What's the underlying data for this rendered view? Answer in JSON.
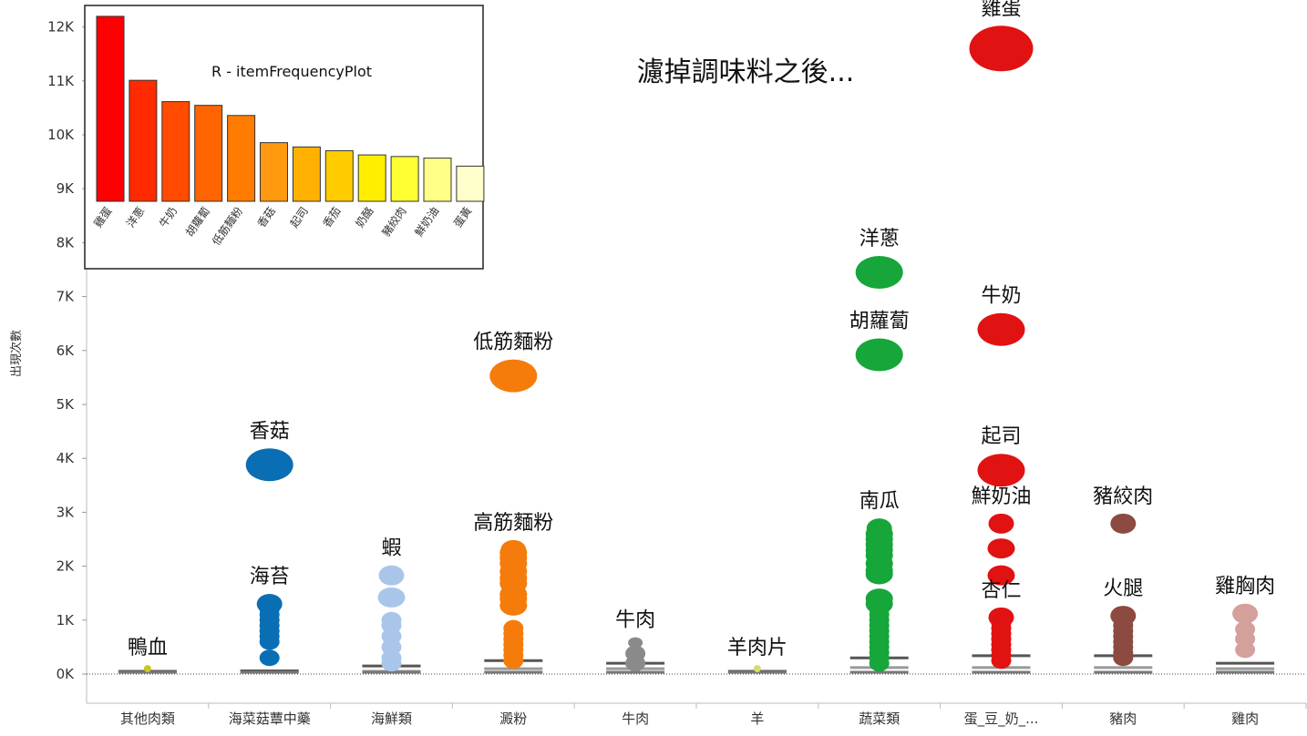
{
  "headline": "濾掉調味料之後...",
  "chart_data": [
    {
      "type": "scatter",
      "title": "",
      "xlabel": "",
      "ylabel": "出現次數",
      "ylim": [
        0,
        12300
      ],
      "y_ticks": [
        "0K",
        "1K",
        "2K",
        "3K",
        "4K",
        "5K",
        "6K",
        "7K",
        "8K",
        "9K",
        "10K",
        "11K",
        "12K"
      ],
      "categories": [
        "其他肉類",
        "海菜菇蕈中藥",
        "海鮮類",
        "澱粉",
        "牛肉",
        "羊",
        "蔬菜類",
        "蛋_豆_奶_...",
        "豬肉",
        "雞肉"
      ],
      "colors": {
        "其他肉類": "#c8c820",
        "海菜菇蕈中藥": "#0a6eb4",
        "海鮮類": "#a9c6ea",
        "澱粉": "#f57c0a",
        "牛肉": "#8a8a8a",
        "羊": "#d6dc66",
        "蔬菜類": "#16a63a",
        "蛋_豆_奶_...": "#e11212",
        "豬肉": "#8c4a40",
        "雞肉": "#d4a09c"
      },
      "labeled_points": [
        {
          "category": "其他肉類",
          "name": "鴨血",
          "y": 100
        },
        {
          "category": "海菜菇蕈中藥",
          "name": "香菇",
          "y": 3880
        },
        {
          "category": "海菜菇蕈中藥",
          "name": "海苔",
          "y": 1300
        },
        {
          "category": "海鮮類",
          "name": "蝦",
          "y": 1830
        },
        {
          "category": "澱粉",
          "name": "低筋麵粉",
          "y": 5530
        },
        {
          "category": "澱粉",
          "name": "高筋麵粉",
          "y": 2300
        },
        {
          "category": "牛肉",
          "name": "牛肉",
          "y": 580
        },
        {
          "category": "羊",
          "name": "羊肉片",
          "y": 100
        },
        {
          "category": "蔬菜類",
          "name": "洋蔥",
          "y": 7450
        },
        {
          "category": "蔬菜類",
          "name": "胡蘿蔔",
          "y": 5920
        },
        {
          "category": "蔬菜類",
          "name": "南瓜",
          "y": 2700
        },
        {
          "category": "蛋_豆_奶_...",
          "name": "雞蛋",
          "y": 11600
        },
        {
          "category": "蛋_豆_奶_...",
          "name": "牛奶",
          "y": 6390
        },
        {
          "category": "蛋_豆_奶_...",
          "name": "起司",
          "y": 3780
        },
        {
          "category": "蛋_豆_奶_...",
          "name": "鮮奶油",
          "y": 2790
        },
        {
          "category": "蛋_豆_奶_...",
          "name": "杏仁",
          "y": 1050
        },
        {
          "category": "豬肉",
          "name": "豬絞肉",
          "y": 2790
        },
        {
          "category": "豬肉",
          "name": "火腿",
          "y": 1080
        },
        {
          "category": "雞肉",
          "name": "雞胸肉",
          "y": 1120
        }
      ],
      "other_points": [
        {
          "category": "海菜菇蕈中藥",
          "y": [
            1200,
            1100,
            1000,
            900,
            800,
            700,
            600,
            300
          ]
        },
        {
          "category": "海鮮類",
          "y": [
            1420,
            1000,
            900,
            700,
            500,
            300,
            200
          ]
        },
        {
          "category": "澱粉",
          "y": [
            2250,
            2150,
            2050,
            1900,
            1780,
            1680,
            1480,
            1400,
            1270,
            850,
            750,
            650,
            550,
            450,
            350,
            250
          ]
        },
        {
          "category": "牛肉",
          "y": [
            380,
            200
          ]
        },
        {
          "category": "蔬菜類",
          "y": [
            2600,
            2500,
            2400,
            2300,
            2200,
            2050,
            1920,
            1850,
            1400,
            1300,
            1200,
            1100,
            1000,
            900,
            800,
            700,
            600,
            500,
            400,
            300,
            200
          ]
        },
        {
          "category": "蛋_豆_奶_...",
          "y": [
            2330,
            1830,
            950,
            850,
            750,
            650,
            550,
            450,
            350,
            250
          ]
        },
        {
          "category": "豬肉",
          "y": [
            1000,
            900,
            800,
            700,
            600,
            500,
            400,
            300
          ]
        },
        {
          "category": "雞肉",
          "y": [
            830,
            650,
            450
          ]
        }
      ],
      "reference_lines": [
        {
          "category": "其他肉類",
          "y": [
            50
          ]
        },
        {
          "category": "海菜菇蕈中藥",
          "y": [
            60
          ]
        },
        {
          "category": "海鮮類",
          "y": [
            150,
            50
          ]
        },
        {
          "category": "澱粉",
          "y": [
            250,
            100
          ]
        },
        {
          "category": "牛肉",
          "y": [
            200,
            100
          ]
        },
        {
          "category": "羊",
          "y": [
            50
          ]
        },
        {
          "category": "蔬菜類",
          "y": [
            300,
            120
          ]
        },
        {
          "category": "蛋_豆_奶_...",
          "y": [
            340,
            120
          ]
        },
        {
          "category": "豬肉",
          "y": [
            340,
            120
          ]
        },
        {
          "category": "雞肉",
          "y": [
            200,
            100
          ]
        }
      ]
    },
    {
      "type": "bar",
      "title": "R - itemFrequencyPlot",
      "categories": [
        "雞蛋",
        "洋蔥",
        "牛奶",
        "胡蘿蔔",
        "低筋麵粉",
        "香菇",
        "起司",
        "香茄",
        "奶酪",
        "豬絞肉",
        "鮮奶油",
        "蛋黃"
      ],
      "values": [
        12250,
        11050,
        10650,
        10580,
        10390,
        9880,
        9800,
        9730,
        9650,
        9620,
        9590,
        9440
      ],
      "ylim": [
        8780,
        12300
      ],
      "colors": [
        "#ff0000",
        "#ff2a00",
        "#ff4a00",
        "#ff6400",
        "#ff7c00",
        "#ff9a10",
        "#ffb000",
        "#ffcc00",
        "#ffee00",
        "#ffff33",
        "#ffff88",
        "#ffffcc"
      ]
    }
  ]
}
